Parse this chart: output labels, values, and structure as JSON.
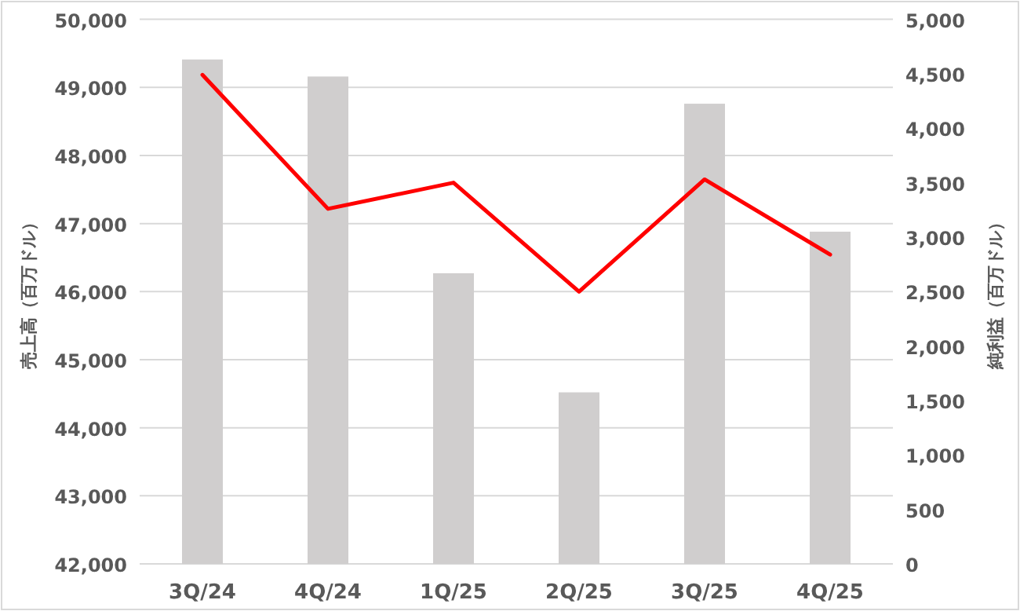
{
  "chart_data": {
    "type": "bar",
    "categories": [
      "3Q/24",
      "4Q/24",
      "1Q/25",
      "2Q/25",
      "3Q/25",
      "4Q/25"
    ],
    "series": [
      {
        "color": "#d0cece",
        "values": [
          49410,
          49160,
          46270,
          44520,
          48760,
          46880
        ]
      },
      {
        "type": "line",
        "axis": "y2",
        "color": "#ff0000",
        "values": [
          4490,
          3260,
          3500,
          2500,
          3530,
          2840
        ]
      }
    ],
    "ylabel": "売上高（百万ドル）",
    "y2label": "純利益（百万ドル）",
    "ylim": [
      42000,
      50000
    ],
    "yticks": [
      {
        "value": 42000,
        "label": "42,000"
      },
      {
        "value": 43000,
        "label": "43,000"
      },
      {
        "value": 44000,
        "label": "44,000"
      },
      {
        "value": 45000,
        "label": "45,000"
      },
      {
        "value": 46000,
        "label": "46,000"
      },
      {
        "value": 47000,
        "label": "47,000"
      },
      {
        "value": 48000,
        "label": "48,000"
      },
      {
        "value": 49000,
        "label": "49,000"
      },
      {
        "value": 50000,
        "label": "50,000"
      }
    ],
    "y2lim": [
      0,
      5000
    ],
    "y2ticks": [
      0,
      500,
      {
        "value": 1000,
        "label": "1,000"
      },
      {
        "value": 1500,
        "label": "1,500"
      },
      {
        "value": 2000,
        "label": "2,000"
      },
      {
        "value": 2500,
        "label": "2,500"
      },
      {
        "value": 3000,
        "label": "3,000"
      },
      {
        "value": 3500,
        "label": "3,500"
      },
      {
        "value": 4000,
        "label": "4,000"
      },
      {
        "value": 4500,
        "label": "4,500"
      },
      {
        "value": 5000,
        "label": "5,000"
      }
    ],
    "grid": "y"
  }
}
